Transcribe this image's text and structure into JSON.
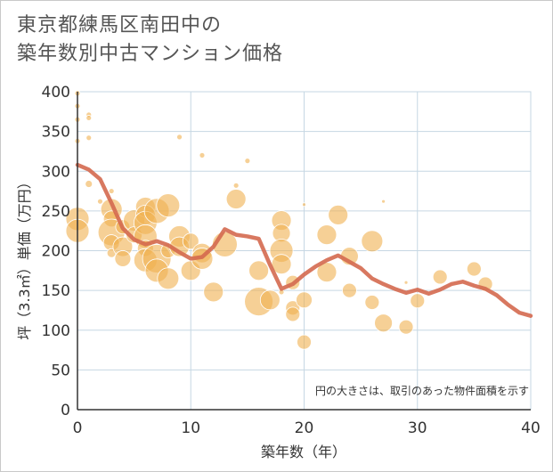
{
  "title_line1": "東京都練馬区南田中の",
  "title_line2": "築年数別中古マンション価格",
  "chart_data": {
    "type": "scatter",
    "title": "東京都練馬区南田中の 築年数別中古マンション価格",
    "xlabel": "築年数（年）",
    "ylabel": "坪（3.3㎡）単価（万円）",
    "xlim": [
      0,
      40
    ],
    "ylim": [
      0,
      400
    ],
    "x_ticks": [
      0,
      10,
      20,
      30,
      40
    ],
    "y_ticks": [
      0,
      50,
      100,
      150,
      200,
      250,
      300,
      350,
      400
    ],
    "grid": true,
    "note": "円の大きさは、取引のあった物件面積を示す",
    "colors": {
      "bubble": "#f0b050",
      "trend": "#d4694f",
      "grid": "#c6d7e3",
      "axis": "#333333"
    },
    "bubbles": [
      {
        "x": 0,
        "y": 398,
        "s": 3
      },
      {
        "x": 0,
        "y": 382,
        "s": 3
      },
      {
        "x": 0,
        "y": 365,
        "s": 3
      },
      {
        "x": 0,
        "y": 338,
        "s": 3
      },
      {
        "x": 1,
        "y": 371,
        "s": 3
      },
      {
        "x": 1,
        "y": 367,
        "s": 3
      },
      {
        "x": 1,
        "y": 342,
        "s": 3
      },
      {
        "x": 1,
        "y": 284,
        "s": 4
      },
      {
        "x": 0,
        "y": 240,
        "s": 13
      },
      {
        "x": 0,
        "y": 225,
        "s": 13
      },
      {
        "x": 2,
        "y": 262,
        "s": 3
      },
      {
        "x": 3,
        "y": 252,
        "s": 12
      },
      {
        "x": 3,
        "y": 240,
        "s": 9
      },
      {
        "x": 3,
        "y": 275,
        "s": 3
      },
      {
        "x": 3,
        "y": 223,
        "s": 15
      },
      {
        "x": 3,
        "y": 210,
        "s": 9
      },
      {
        "x": 3,
        "y": 197,
        "s": 5
      },
      {
        "x": 4,
        "y": 205,
        "s": 11
      },
      {
        "x": 4,
        "y": 190,
        "s": 9
      },
      {
        "x": 4,
        "y": 230,
        "s": 8
      },
      {
        "x": 5,
        "y": 238,
        "s": 12
      },
      {
        "x": 5,
        "y": 220,
        "s": 9
      },
      {
        "x": 6,
        "y": 255,
        "s": 11
      },
      {
        "x": 6,
        "y": 245,
        "s": 11
      },
      {
        "x": 6,
        "y": 235,
        "s": 13
      },
      {
        "x": 6,
        "y": 218,
        "s": 13
      },
      {
        "x": 6,
        "y": 203,
        "s": 9
      },
      {
        "x": 6,
        "y": 188,
        "s": 13
      },
      {
        "x": 7,
        "y": 250,
        "s": 14
      },
      {
        "x": 7,
        "y": 190,
        "s": 16
      },
      {
        "x": 7,
        "y": 175,
        "s": 13
      },
      {
        "x": 8,
        "y": 257,
        "s": 13
      },
      {
        "x": 8,
        "y": 165,
        "s": 12
      },
      {
        "x": 8,
        "y": 200,
        "s": 8
      },
      {
        "x": 9,
        "y": 343,
        "s": 3
      },
      {
        "x": 9,
        "y": 218,
        "s": 12
      },
      {
        "x": 9,
        "y": 205,
        "s": 11
      },
      {
        "x": 10,
        "y": 212,
        "s": 9
      },
      {
        "x": 10,
        "y": 175,
        "s": 11
      },
      {
        "x": 11,
        "y": 320,
        "s": 3
      },
      {
        "x": 11,
        "y": 197,
        "s": 11
      },
      {
        "x": 11,
        "y": 190,
        "s": 12
      },
      {
        "x": 12,
        "y": 148,
        "s": 11
      },
      {
        "x": 13,
        "y": 208,
        "s": 14
      },
      {
        "x": 14,
        "y": 282,
        "s": 3
      },
      {
        "x": 14,
        "y": 265,
        "s": 11
      },
      {
        "x": 15,
        "y": 313,
        "s": 3
      },
      {
        "x": 16,
        "y": 175,
        "s": 11
      },
      {
        "x": 16,
        "y": 136,
        "s": 16
      },
      {
        "x": 17,
        "y": 138,
        "s": 11
      },
      {
        "x": 18,
        "y": 238,
        "s": 11
      },
      {
        "x": 18,
        "y": 222,
        "s": 10
      },
      {
        "x": 18,
        "y": 200,
        "s": 13
      },
      {
        "x": 18,
        "y": 183,
        "s": 11
      },
      {
        "x": 18,
        "y": 148,
        "s": 3
      },
      {
        "x": 19,
        "y": 160,
        "s": 8
      },
      {
        "x": 19,
        "y": 128,
        "s": 8
      },
      {
        "x": 19,
        "y": 120,
        "s": 8
      },
      {
        "x": 20,
        "y": 258,
        "s": 2
      },
      {
        "x": 20,
        "y": 138,
        "s": 9
      },
      {
        "x": 20,
        "y": 85,
        "s": 8
      },
      {
        "x": 22,
        "y": 220,
        "s": 11
      },
      {
        "x": 22,
        "y": 173,
        "s": 11
      },
      {
        "x": 23,
        "y": 245,
        "s": 11
      },
      {
        "x": 24,
        "y": 193,
        "s": 10
      },
      {
        "x": 24,
        "y": 150,
        "s": 8
      },
      {
        "x": 26,
        "y": 212,
        "s": 12
      },
      {
        "x": 26,
        "y": 135,
        "s": 8
      },
      {
        "x": 27,
        "y": 262,
        "s": 2
      },
      {
        "x": 27,
        "y": 109,
        "s": 10
      },
      {
        "x": 29,
        "y": 160,
        "s": 2
      },
      {
        "x": 29,
        "y": 104,
        "s": 8
      },
      {
        "x": 30,
        "y": 137,
        "s": 8
      },
      {
        "x": 32,
        "y": 167,
        "s": 8
      },
      {
        "x": 35,
        "y": 177,
        "s": 8
      },
      {
        "x": 36,
        "y": 158,
        "s": 8
      }
    ],
    "trend": {
      "x": [
        0,
        1,
        2,
        3,
        4,
        5,
        6,
        7,
        8,
        9,
        10,
        11,
        12,
        13,
        14,
        15,
        16,
        17,
        18,
        19,
        20,
        21,
        22,
        23,
        24,
        25,
        26,
        27,
        28,
        29,
        30,
        31,
        32,
        33,
        34,
        35,
        36,
        37,
        38,
        39,
        40
      ],
      "y": [
        308,
        302,
        290,
        260,
        228,
        214,
        208,
        212,
        207,
        198,
        190,
        192,
        205,
        227,
        220,
        218,
        215,
        182,
        152,
        158,
        170,
        180,
        188,
        194,
        186,
        178,
        165,
        158,
        152,
        147,
        151,
        146,
        151,
        158,
        161,
        156,
        152,
        144,
        132,
        122,
        118
      ]
    }
  }
}
